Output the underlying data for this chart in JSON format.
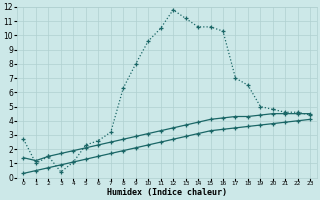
{
  "xlabel": "Humidex (Indice chaleur)",
  "ylabel": "",
  "xlim": [
    -0.5,
    23.5
  ],
  "ylim": [
    0,
    12
  ],
  "background_color": "#cce8e8",
  "grid_color": "#b0d0d0",
  "line_color": "#1a6666",
  "line1_x": [
    0,
    1,
    2,
    3,
    4,
    5,
    6,
    7,
    8,
    9,
    10,
    11,
    12,
    13,
    14,
    15,
    16,
    17,
    18,
    19,
    20,
    21,
    22,
    23
  ],
  "line1_y": [
    2.7,
    1.0,
    1.5,
    0.4,
    1.1,
    2.3,
    2.6,
    3.2,
    6.3,
    8.0,
    9.6,
    10.5,
    11.8,
    11.2,
    10.6,
    10.6,
    10.3,
    7.0,
    6.5,
    5.0,
    4.8,
    4.6,
    4.6,
    4.4
  ],
  "line2_x": [
    0,
    1,
    2,
    3,
    4,
    5,
    6,
    7,
    8,
    9,
    10,
    11,
    12,
    13,
    14,
    15,
    16,
    17,
    18,
    19,
    20,
    21,
    22,
    23
  ],
  "line2_y": [
    1.4,
    1.2,
    1.5,
    1.7,
    1.9,
    2.1,
    2.3,
    2.5,
    2.7,
    2.9,
    3.1,
    3.3,
    3.5,
    3.7,
    3.9,
    4.1,
    4.2,
    4.3,
    4.3,
    4.4,
    4.5,
    4.5,
    4.5,
    4.5
  ],
  "line3_x": [
    0,
    1,
    2,
    3,
    4,
    5,
    6,
    7,
    8,
    9,
    10,
    11,
    12,
    13,
    14,
    15,
    16,
    17,
    18,
    19,
    20,
    21,
    22,
    23
  ],
  "line3_y": [
    0.3,
    0.5,
    0.7,
    0.9,
    1.1,
    1.3,
    1.5,
    1.7,
    1.9,
    2.1,
    2.3,
    2.5,
    2.7,
    2.9,
    3.1,
    3.3,
    3.4,
    3.5,
    3.6,
    3.7,
    3.8,
    3.9,
    4.0,
    4.1
  ]
}
